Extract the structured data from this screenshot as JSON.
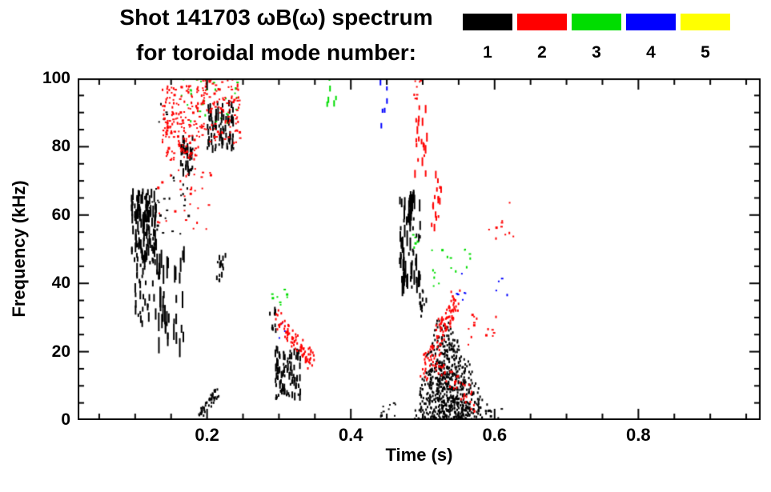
{
  "title": {
    "line1": "Shot 141703 ωB(ω) spectrum",
    "line2": "for toroidal mode number:"
  },
  "legend": {
    "modes": [
      {
        "n": "1",
        "color": "#000000"
      },
      {
        "n": "2",
        "color": "#ff0000"
      },
      {
        "n": "3",
        "color": "#00dd00"
      },
      {
        "n": "4",
        "color": "#0000ff"
      },
      {
        "n": "5",
        "color": "#ffff00"
      }
    ]
  },
  "chart_data": {
    "type": "scatter",
    "title": "Shot 141703 ωB(ω) spectrum for toroidal mode number: 1 2 3 4 5",
    "xlabel": "Time (s)",
    "ylabel": "Frequency (kHz)",
    "xlim": [
      0.02,
      0.97
    ],
    "ylim": [
      0,
      100
    ],
    "xticks": [
      0.2,
      0.4,
      0.6,
      0.8
    ],
    "xtick_labels": [
      "0.2",
      "0.4",
      "0.6",
      "0.8"
    ],
    "xminor_step": 0.05,
    "yticks": [
      0,
      20,
      40,
      60,
      80,
      100
    ],
    "ytick_labels": [
      "0",
      "20",
      "40",
      "60",
      "80",
      "100"
    ],
    "yminor_step": 5,
    "grid": false,
    "legend_position": "top-right",
    "series": [
      {
        "name": "n=1",
        "color": "#000000",
        "clusters": [
          {
            "style": "vstreak",
            "t": [
              0.095,
              0.13
            ],
            "f": [
              46,
              67
            ],
            "count": 130,
            "len": [
              4,
              16
            ]
          },
          {
            "style": "vstreak",
            "t": [
              0.1,
              0.128
            ],
            "f": [
              28,
              47
            ],
            "count": 30,
            "len": [
              4,
              12
            ]
          },
          {
            "style": "vstreak",
            "t": [
              0.128,
              0.168
            ],
            "f": [
              21,
              50
            ],
            "count": 40,
            "len": [
              6,
              30
            ]
          },
          {
            "style": "dots",
            "t": [
              0.118,
              0.175
            ],
            "f": [
              54,
              72
            ],
            "count": 28
          },
          {
            "style": "vstreak",
            "t": [
              0.163,
              0.18
            ],
            "f": [
              72,
              83
            ],
            "count": 35,
            "len": [
              3,
              10
            ]
          },
          {
            "style": "vstreak",
            "t": [
              0.2,
              0.237
            ],
            "f": [
              79,
              93
            ],
            "count": 80,
            "len": [
              3,
              10
            ]
          },
          {
            "style": "chirp",
            "from": [
              0.19,
              1.5
            ],
            "to": [
              0.215,
              8.5
            ],
            "count": 45,
            "jt": 0.004,
            "jf": 1.2
          },
          {
            "style": "vstreak",
            "t": [
              0.213,
              0.226
            ],
            "f": [
              40,
              49
            ],
            "count": 14,
            "len": [
              3,
              8
            ]
          },
          {
            "style": "vstreak",
            "t": [
              0.295,
              0.33
            ],
            "f": [
              6,
              21
            ],
            "count": 90,
            "len": [
              3,
              10
            ]
          },
          {
            "style": "vstreak",
            "t": [
              0.287,
              0.297
            ],
            "f": [
              24,
              34
            ],
            "count": 10,
            "len": [
              3,
              8
            ]
          },
          {
            "style": "vstreak",
            "t": [
              0.468,
              0.497
            ],
            "f": [
              38,
              66
            ],
            "count": 80,
            "len": [
              4,
              22
            ]
          },
          {
            "style": "burst",
            "t": [
              0.482,
              0.6
            ],
            "f": [
              0,
              30
            ],
            "peak": 0.527,
            "count": 700
          },
          {
            "style": "vstreak",
            "t": [
              0.496,
              0.505
            ],
            "f": [
              28,
              38
            ],
            "count": 12,
            "len": [
              3,
              8
            ]
          },
          {
            "style": "dots",
            "t": [
              0.133,
              0.148
            ],
            "f": [
              87,
              93
            ],
            "count": 6
          },
          {
            "style": "dots",
            "t": [
              0.44,
              0.462
            ],
            "f": [
              0,
              6
            ],
            "count": 10
          },
          {
            "style": "dots",
            "t": [
              0.588,
              0.61
            ],
            "f": [
              0,
              4
            ],
            "count": 8
          }
        ]
      },
      {
        "name": "n=2",
        "color": "#ff0000",
        "clusters": [
          {
            "style": "dots",
            "t": [
              0.138,
              0.188
            ],
            "f": [
              76,
              98
            ],
            "count": 170
          },
          {
            "style": "dots",
            "t": [
              0.186,
              0.246
            ],
            "f": [
              81,
              100
            ],
            "count": 130
          },
          {
            "style": "dots",
            "t": [
              0.128,
              0.205
            ],
            "f": [
              55,
              74
            ],
            "count": 34
          },
          {
            "style": "chirp",
            "from": [
              0.297,
              30
            ],
            "to": [
              0.347,
              17
            ],
            "count": 90,
            "jt": 0.005,
            "jf": 2.5
          },
          {
            "style": "vstreak",
            "t": [
              0.489,
              0.506
            ],
            "f": [
              72,
              93
            ],
            "count": 20,
            "len": [
              3,
              12
            ]
          },
          {
            "style": "vstreak",
            "t": [
              0.512,
              0.527
            ],
            "f": [
              55,
              72
            ],
            "count": 16,
            "len": [
              3,
              10
            ]
          },
          {
            "style": "chirp",
            "from": [
              0.5,
              14
            ],
            "to": [
              0.547,
              36
            ],
            "count": 110,
            "jt": 0.006,
            "jf": 3
          },
          {
            "style": "chirp",
            "from": [
              0.52,
              18
            ],
            "to": [
              0.575,
              4
            ],
            "count": 45,
            "jt": 0.006,
            "jf": 3
          },
          {
            "style": "dots",
            "t": [
              0.557,
              0.602
            ],
            "f": [
              21,
              31
            ],
            "count": 14
          },
          {
            "style": "dots",
            "t": [
              0.484,
              0.497
            ],
            "f": [
              94,
              100
            ],
            "count": 8
          },
          {
            "style": "dots",
            "t": [
              0.588,
              0.632
            ],
            "f": [
              53,
              64
            ],
            "count": 10
          }
        ]
      },
      {
        "name": "n=3",
        "color": "#00dd00",
        "clusters": [
          {
            "style": "dots",
            "t": [
              0.162,
              0.242
            ],
            "f": [
              87,
              100
            ],
            "count": 34
          },
          {
            "style": "vstreak",
            "t": [
              0.366,
              0.38
            ],
            "f": [
              92,
              100
            ],
            "count": 6,
            "len": [
              3,
              8
            ]
          },
          {
            "style": "dots",
            "t": [
              0.29,
              0.315
            ],
            "f": [
              32,
              39
            ],
            "count": 8
          },
          {
            "style": "dots",
            "t": [
              0.512,
              0.568
            ],
            "f": [
              37,
              50
            ],
            "count": 16
          },
          {
            "style": "dots",
            "t": [
              0.483,
              0.497
            ],
            "f": [
              50,
              58
            ],
            "count": 5
          }
        ]
      },
      {
        "name": "n=4",
        "color": "#0000ff",
        "clusters": [
          {
            "style": "vstreak",
            "t": [
              0.441,
              0.453
            ],
            "f": [
              86,
              100
            ],
            "count": 6,
            "len": [
              3,
              9
            ]
          },
          {
            "style": "dots",
            "t": [
              0.546,
              0.56
            ],
            "f": [
              35,
              44
            ],
            "count": 6
          },
          {
            "style": "dots",
            "t": [
              0.6,
              0.618
            ],
            "f": [
              36,
              42
            ],
            "count": 4
          },
          {
            "style": "dots",
            "t": [
              0.3,
              0.31
            ],
            "f": [
              24,
              30
            ],
            "count": 3
          }
        ]
      },
      {
        "name": "n=5",
        "color": "#ffff00",
        "clusters": []
      }
    ]
  }
}
